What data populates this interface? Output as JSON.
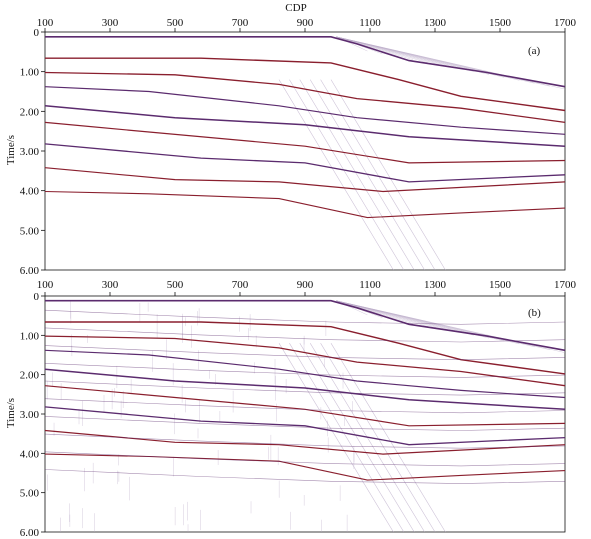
{
  "figure": {
    "top_axis_title": "CDP",
    "y_axis_label": "Time/s",
    "cdp_ticks": [
      "100",
      "300",
      "500",
      "700",
      "900",
      "1100",
      "1300",
      "1500",
      "1700"
    ],
    "time_ticks": [
      "0",
      "1.00",
      "2.00",
      "3.00",
      "4.00",
      "5.00",
      "6.00"
    ],
    "panels": [
      {
        "tag": "(a)"
      },
      {
        "tag": "(b)"
      }
    ]
  },
  "colors": {
    "background": "#ffffff",
    "reflector_red": "#8a1f2e",
    "reflector_purple": "#5b2b6e",
    "noise": "#b9a9c7",
    "axis": "#111111"
  }
}
